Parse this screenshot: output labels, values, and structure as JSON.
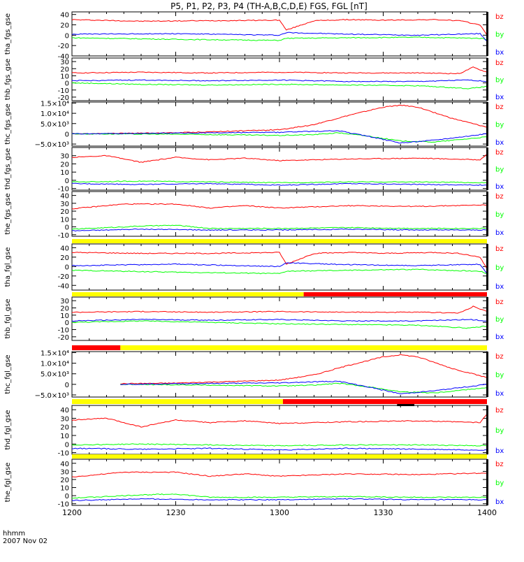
{
  "title": "P5, P1, P2, P3, P4 (TH-A,B,C,D,E) FGS, FGL [nT]",
  "time_axis": {
    "range": [
      1200,
      1400
    ],
    "ticks": [
      "1200",
      "1230",
      "1300",
      "1330",
      "1400"
    ],
    "tick_values": [
      0,
      30,
      60,
      90,
      120
    ],
    "label_line1": "hhmm",
    "label_line2": "2007 Nov 02"
  },
  "colors": {
    "bx": "#0000ff",
    "by": "#00ff00",
    "bz": "#ff0000",
    "yellow": "#ffff00",
    "black": "#000000"
  },
  "chart_data": [
    {
      "type": "line",
      "ylabel": "tha_fgs_gse",
      "ylim": [
        -40,
        45
      ],
      "yticks": [
        "40",
        "20",
        "0",
        "-20",
        "-40"
      ],
      "ytick_values": [
        40,
        20,
        0,
        -20,
        -40
      ],
      "legend": [
        "bz",
        "by",
        "bx"
      ],
      "grid": false,
      "series": [
        {
          "name": "bz",
          "color": "#ff0000",
          "t": [
            0,
            20,
            40,
            60,
            62,
            70,
            80,
            90,
            105,
            112,
            118,
            120
          ],
          "v": [
            30,
            27,
            28,
            29,
            10,
            28,
            30,
            29,
            30,
            28,
            20,
            0
          ]
        },
        {
          "name": "by",
          "color": "#00ff00",
          "t": [
            0,
            30,
            60,
            62,
            80,
            100,
            118,
            120
          ],
          "v": [
            -5,
            -8,
            -10,
            -6,
            -5,
            -4,
            -6,
            -8
          ]
        },
        {
          "name": "bx",
          "color": "#0000ff",
          "t": [
            0,
            30,
            60,
            62,
            80,
            100,
            118,
            120
          ],
          "v": [
            2,
            3,
            0,
            5,
            2,
            0,
            3,
            -12
          ]
        }
      ]
    },
    {
      "type": "line",
      "ylabel": "thb_fgs_gse",
      "ylim": [
        -25,
        35
      ],
      "yticks": [
        "30",
        "20",
        "10",
        "0",
        "-10",
        "-20"
      ],
      "ytick_values": [
        30,
        20,
        10,
        0,
        -10,
        -20
      ],
      "legend": [
        "bz",
        "by",
        "bx"
      ],
      "grid": false,
      "series": [
        {
          "name": "bz",
          "color": "#ff0000",
          "t": [
            0,
            20,
            40,
            60,
            80,
            100,
            112,
            116,
            120
          ],
          "v": [
            14,
            15,
            14,
            15,
            14,
            14,
            13,
            22,
            15
          ]
        },
        {
          "name": "by",
          "color": "#00ff00",
          "t": [
            0,
            20,
            40,
            60,
            80,
            100,
            115,
            120
          ],
          "v": [
            0,
            -2,
            -3,
            -2,
            -3,
            -4,
            -8,
            -5
          ]
        },
        {
          "name": "bx",
          "color": "#0000ff",
          "t": [
            0,
            20,
            40,
            60,
            80,
            100,
            115,
            120
          ],
          "v": [
            3,
            4,
            3,
            4,
            2,
            2,
            4,
            2
          ]
        }
      ]
    },
    {
      "type": "line",
      "ylabel": "thc_fgs_gse",
      "ylim": [
        -6000,
        15500
      ],
      "yticks": [
        "1.5×10⁴",
        "1.0×10⁴",
        "5.0×10³",
        "0",
        "−5.0×10³"
      ],
      "ytick_values": [
        15000,
        10000,
        5000,
        0,
        -5000
      ],
      "legend": [
        "bz",
        "by",
        "bx"
      ],
      "grid": false,
      "series": [
        {
          "name": "bz",
          "color": "#ff0000",
          "t": [
            0,
            30,
            60,
            70,
            80,
            90,
            95,
            100,
            110,
            120
          ],
          "v": [
            0,
            500,
            2000,
            4500,
            9000,
            13000,
            14000,
            13000,
            7500,
            3200
          ]
        },
        {
          "name": "by",
          "color": "#00ff00",
          "t": [
            0,
            30,
            60,
            70,
            77,
            85,
            95,
            105,
            120
          ],
          "v": [
            0,
            -200,
            -800,
            -400,
            500,
            -1000,
            -3500,
            -4000,
            -1500
          ]
        },
        {
          "name": "bx",
          "color": "#0000ff",
          "t": [
            0,
            30,
            60,
            70,
            77,
            85,
            95,
            105,
            120
          ],
          "v": [
            0,
            300,
            700,
            1200,
            1500,
            -1000,
            -4500,
            -3000,
            0
          ]
        }
      ]
    },
    {
      "type": "line",
      "ylabel": "thd_fgs_gse",
      "ylim": [
        -12,
        40
      ],
      "yticks": [
        "30",
        "20",
        "10",
        "0",
        "-10"
      ],
      "ytick_values": [
        30,
        20,
        10,
        0,
        -10
      ],
      "legend": [
        "bz",
        "by",
        "bx"
      ],
      "grid": false,
      "series": [
        {
          "name": "bz",
          "color": "#ff0000",
          "t": [
            0,
            10,
            20,
            30,
            40,
            50,
            60,
            80,
            100,
            118,
            120
          ],
          "v": [
            28,
            30,
            22,
            28,
            25,
            27,
            24,
            26,
            27,
            25,
            32
          ]
        },
        {
          "name": "by",
          "color": "#00ff00",
          "t": [
            0,
            20,
            40,
            60,
            80,
            100,
            120
          ],
          "v": [
            -2,
            -1,
            -2,
            -3,
            -2,
            -2,
            -3
          ]
        },
        {
          "name": "bx",
          "color": "#0000ff",
          "t": [
            0,
            20,
            40,
            60,
            80,
            100,
            120
          ],
          "v": [
            -4,
            -5,
            -4,
            -6,
            -4,
            -5,
            -6
          ]
        }
      ]
    },
    {
      "type": "line",
      "ylabel": "the_fgs_gse",
      "ylim": [
        -12,
        45
      ],
      "yticks": [
        "40",
        "30",
        "20",
        "10",
        "0",
        "-10"
      ],
      "ytick_values": [
        40,
        30,
        20,
        10,
        0,
        -10
      ],
      "legend": [
        "bz",
        "by",
        "bx"
      ],
      "grid": false,
      "series": [
        {
          "name": "bz",
          "color": "#ff0000",
          "t": [
            0,
            15,
            30,
            40,
            50,
            60,
            80,
            100,
            120
          ],
          "v": [
            23,
            29,
            29,
            24,
            27,
            24,
            27,
            26,
            28
          ]
        },
        {
          "name": "by",
          "color": "#00ff00",
          "t": [
            0,
            20,
            30,
            40,
            60,
            80,
            100,
            120
          ],
          "v": [
            -3,
            1,
            2,
            -2,
            -2,
            -1,
            -2,
            -2
          ]
        },
        {
          "name": "bx",
          "color": "#0000ff",
          "t": [
            0,
            20,
            40,
            60,
            80,
            100,
            120
          ],
          "v": [
            -5,
            -3,
            -4,
            -4,
            -3,
            -4,
            -4
          ]
        }
      ]
    },
    {
      "type": "line",
      "ylabel": "tha_fgl_gse",
      "ylim": [
        -50,
        48
      ],
      "yticks": [
        "40",
        "20",
        "0",
        "-20",
        "-40"
      ],
      "ytick_values": [
        40,
        20,
        0,
        -20,
        -40
      ],
      "legend": [
        "bz",
        "by",
        "bx"
      ],
      "grid": false,
      "series": [
        {
          "name": "bz",
          "color": "#ff0000",
          "t": [
            0,
            20,
            40,
            60,
            62,
            70,
            80,
            90,
            105,
            112,
            118,
            120
          ],
          "v": [
            30,
            28,
            28,
            30,
            5,
            28,
            30,
            28,
            30,
            28,
            20,
            -5
          ]
        },
        {
          "name": "by",
          "color": "#00ff00",
          "t": [
            0,
            30,
            60,
            62,
            80,
            100,
            118,
            120
          ],
          "v": [
            -8,
            -12,
            -15,
            -10,
            -8,
            -6,
            -10,
            -15
          ]
        },
        {
          "name": "bx",
          "color": "#0000ff",
          "t": [
            0,
            30,
            60,
            62,
            80,
            100,
            118,
            120
          ],
          "v": [
            2,
            5,
            0,
            8,
            4,
            2,
            5,
            -15
          ]
        }
      ]
    },
    {
      "type": "line",
      "ylabel": "thb_fgl_gse",
      "ylim": [
        -25,
        35
      ],
      "yticks": [
        "30",
        "20",
        "10",
        "0",
        "-10",
        "-20"
      ],
      "ytick_values": [
        30,
        20,
        10,
        0,
        -10,
        -20
      ],
      "legend": [
        "bz",
        "by",
        "bx"
      ],
      "grid": false,
      "series": [
        {
          "name": "bz",
          "color": "#ff0000",
          "t": [
            0,
            20,
            40,
            60,
            80,
            100,
            112,
            116,
            120
          ],
          "v": [
            14,
            15,
            14,
            15,
            14,
            14,
            13,
            22,
            15
          ]
        },
        {
          "name": "by",
          "color": "#00ff00",
          "t": [
            0,
            20,
            40,
            60,
            80,
            100,
            115,
            120
          ],
          "v": [
            0,
            2,
            0,
            -2,
            -3,
            -4,
            -8,
            -5
          ]
        },
        {
          "name": "bx",
          "color": "#0000ff",
          "t": [
            0,
            20,
            40,
            60,
            80,
            100,
            115,
            120
          ],
          "v": [
            2,
            4,
            3,
            4,
            2,
            2,
            4,
            2
          ]
        }
      ]
    },
    {
      "type": "line",
      "ylabel": "thc_fgl_gse",
      "ylim": [
        -6000,
        15500
      ],
      "yticks": [
        "1.5×10⁴",
        "1.0×10⁴",
        "5.0×10³",
        "0",
        "−5.0×10³"
      ],
      "ytick_values": [
        15000,
        10000,
        5000,
        0,
        -5000
      ],
      "legend": [
        "bz",
        "by",
        "bx"
      ],
      "grid": false,
      "series": [
        {
          "name": "bz",
          "color": "#ff0000",
          "t": [
            14,
            30,
            60,
            70,
            80,
            90,
            95,
            100,
            110,
            120
          ],
          "v": [
            300,
            600,
            2000,
            4500,
            9000,
            13000,
            14000,
            13000,
            7500,
            3200
          ]
        },
        {
          "name": "by",
          "color": "#00ff00",
          "t": [
            14,
            30,
            60,
            70,
            77,
            85,
            95,
            105,
            120
          ],
          "v": [
            0,
            -200,
            -800,
            -400,
            500,
            -1000,
            -3500,
            -4000,
            -1500
          ]
        },
        {
          "name": "bx",
          "color": "#0000ff",
          "t": [
            14,
            30,
            60,
            70,
            77,
            85,
            95,
            105,
            120
          ],
          "v": [
            0,
            300,
            700,
            1200,
            1500,
            -1000,
            -4500,
            -3000,
            0
          ]
        }
      ]
    },
    {
      "type": "line",
      "ylabel": "thd_fgl_gse",
      "ylim": [
        -12,
        45
      ],
      "yticks": [
        "40",
        "30",
        "20",
        "10",
        "0",
        "-10"
      ],
      "ytick_values": [
        40,
        30,
        20,
        10,
        0,
        -10
      ],
      "legend": [
        "bz",
        "by",
        "bx"
      ],
      "grid": false,
      "series": [
        {
          "name": "bz",
          "color": "#ff0000",
          "t": [
            0,
            10,
            20,
            30,
            40,
            50,
            60,
            80,
            100,
            118,
            120
          ],
          "v": [
            28,
            30,
            20,
            28,
            25,
            27,
            24,
            26,
            27,
            25,
            35
          ]
        },
        {
          "name": "by",
          "color": "#00ff00",
          "t": [
            0,
            20,
            40,
            60,
            80,
            100,
            120
          ],
          "v": [
            -1,
            0,
            -1,
            -2,
            -1,
            -1,
            -2
          ]
        },
        {
          "name": "bx",
          "color": "#0000ff",
          "t": [
            0,
            20,
            40,
            60,
            80,
            100,
            120
          ],
          "v": [
            -5,
            -6,
            -5,
            -7,
            -5,
            -6,
            -7
          ]
        }
      ]
    },
    {
      "type": "line",
      "ylabel": "the_fgl_gse",
      "ylim": [
        -12,
        45
      ],
      "yticks": [
        "40",
        "30",
        "20",
        "10",
        "0",
        "-10"
      ],
      "ytick_values": [
        40,
        30,
        20,
        10,
        0,
        -10
      ],
      "legend": [
        "bz",
        "by",
        "bx"
      ],
      "grid": false,
      "series": [
        {
          "name": "bz",
          "color": "#ff0000",
          "t": [
            0,
            15,
            30,
            40,
            50,
            60,
            80,
            100,
            120
          ],
          "v": [
            23,
            29,
            29,
            24,
            27,
            24,
            27,
            26,
            28
          ]
        },
        {
          "name": "by",
          "color": "#00ff00",
          "t": [
            0,
            20,
            30,
            40,
            60,
            80,
            100,
            120
          ],
          "v": [
            -3,
            1,
            2,
            -2,
            -2,
            -1,
            -2,
            -2
          ]
        },
        {
          "name": "bx",
          "color": "#0000ff",
          "t": [
            0,
            20,
            40,
            60,
            80,
            100,
            120
          ],
          "v": [
            -6,
            -4,
            -5,
            -5,
            -4,
            -5,
            -5
          ]
        }
      ]
    }
  ],
  "status_bars": [
    {
      "after_panel": 4,
      "segments": [
        {
          "t0": 0,
          "t1": 120,
          "color": "#ffff00"
        }
      ]
    },
    {
      "after_panel": 5,
      "segments": [
        {
          "t0": 0,
          "t1": 67,
          "color": "#ffff00"
        },
        {
          "t0": 67,
          "t1": 120,
          "color": "#ff0000"
        }
      ]
    },
    {
      "after_panel": 6,
      "segments": [
        {
          "t0": 0,
          "t1": 14,
          "color": "#ff0000"
        },
        {
          "t0": 14,
          "t1": 120,
          "color": "#ffff00"
        }
      ]
    },
    {
      "after_panel": 7,
      "segments": [
        {
          "t0": 0,
          "t1": 61,
          "color": "#ffff00"
        },
        {
          "t0": 61,
          "t1": 120,
          "color": "#ff0000"
        }
      ],
      "marker": {
        "t0": 94,
        "t1": 99,
        "color": "#000000"
      }
    },
    {
      "after_panel": 8,
      "segments": [
        {
          "t0": 0,
          "t1": 120,
          "color": "#ffff00"
        }
      ]
    }
  ]
}
